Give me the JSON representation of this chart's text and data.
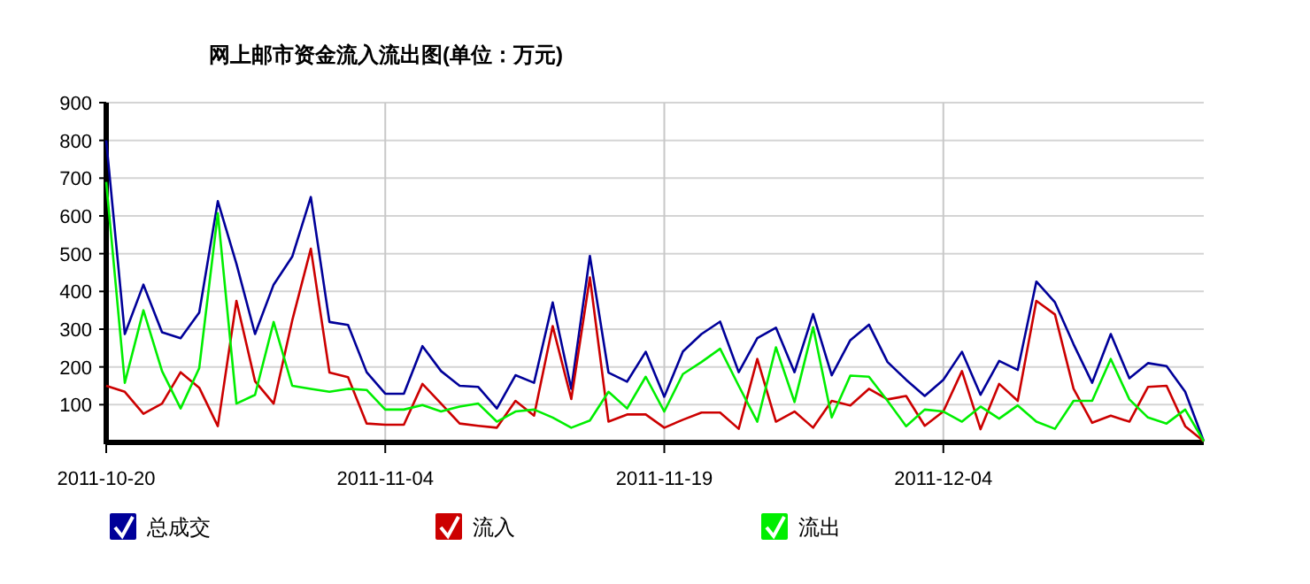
{
  "chart_data": {
    "type": "line",
    "title": "网上邮市资金流入流出图(单位：万元)",
    "x": [
      "2011-10-20",
      "2011-10-21",
      "2011-10-22",
      "2011-10-23",
      "2011-10-24",
      "2011-10-25",
      "2011-10-26",
      "2011-10-27",
      "2011-10-28",
      "2011-10-29",
      "2011-10-30",
      "2011-10-31",
      "2011-11-01",
      "2011-11-02",
      "2011-11-03",
      "2011-11-04",
      "2011-11-05",
      "2011-11-06",
      "2011-11-07",
      "2011-11-08",
      "2011-11-09",
      "2011-11-10",
      "2011-11-11",
      "2011-11-12",
      "2011-11-13",
      "2011-11-14",
      "2011-11-15",
      "2011-11-16",
      "2011-11-17",
      "2011-11-18",
      "2011-11-19",
      "2011-11-20",
      "2011-11-21",
      "2011-11-22",
      "2011-11-23",
      "2011-11-24",
      "2011-11-25",
      "2011-11-26",
      "2011-11-27",
      "2011-11-28",
      "2011-11-29",
      "2011-11-30",
      "2011-12-01",
      "2011-12-02",
      "2011-12-03",
      "2011-12-04",
      "2011-12-05",
      "2011-12-06",
      "2011-12-07",
      "2011-12-08",
      "2011-12-09",
      "2011-12-10",
      "2011-12-11",
      "2011-12-12",
      "2011-12-13",
      "2011-12-14",
      "2011-12-15",
      "2011-12-16",
      "2011-12-17",
      "2011-12-18"
    ],
    "series": [
      {
        "name": "总成交",
        "color": "#000099",
        "values": [
          800,
          287,
          418,
          292,
          276,
          344,
          639,
          473,
          287,
          418,
          492,
          650,
          319,
          311,
          186,
          129,
          129,
          255,
          189,
          150,
          147,
          90,
          178,
          158,
          371,
          142,
          494,
          185,
          161,
          240,
          121,
          241,
          287,
          320,
          186,
          276,
          304,
          186,
          340,
          178,
          271,
          312,
          213,
          166,
          123,
          166,
          240,
          126,
          216,
          192,
          426,
          371,
          260,
          158,
          287,
          170,
          210,
          202,
          134,
          3
        ]
      },
      {
        "name": "流入",
        "color": "#cc0000",
        "values": [
          150,
          134,
          76,
          103,
          186,
          145,
          43,
          375,
          162,
          103,
          323,
          513,
          185,
          173,
          50,
          47,
          47,
          155,
          103,
          50,
          44,
          39,
          110,
          71,
          308,
          115,
          437,
          55,
          74,
          74,
          39,
          60,
          79,
          79,
          36,
          221,
          55,
          82,
          39,
          110,
          98,
          142,
          114,
          123,
          44,
          82,
          189,
          35,
          155,
          110,
          375,
          339,
          142,
          52,
          71,
          55,
          147,
          150,
          43,
          3
        ]
      },
      {
        "name": "流出",
        "color": "#00ee00",
        "values": [
          690,
          158,
          350,
          189,
          90,
          197,
          607,
          103,
          126,
          319,
          150,
          142,
          134,
          142,
          139,
          87,
          87,
          99,
          82,
          95,
          103,
          55,
          82,
          87,
          66,
          39,
          58,
          134,
          90,
          174,
          82,
          181,
          213,
          248,
          150,
          55,
          252,
          107,
          305,
          66,
          177,
          174,
          110,
          43,
          87,
          82,
          55,
          95,
          63,
          98,
          55,
          36,
          110,
          110,
          221,
          114,
          66,
          50,
          87,
          3
        ]
      }
    ],
    "xlim": [
      "2011-10-20",
      "2011-12-18"
    ],
    "xticks": [
      {
        "value": "2011-10-20",
        "label": "2011-10-20"
      },
      {
        "value": "2011-11-04",
        "label": "2011-11-04"
      },
      {
        "value": "2011-11-19",
        "label": "2011-11-19"
      },
      {
        "value": "2011-12-04",
        "label": "2011-12-04"
      }
    ],
    "ylim": [
      0,
      900
    ],
    "yticks": [
      100,
      200,
      300,
      400,
      500,
      600,
      700,
      800,
      900
    ],
    "grid": true,
    "legend": "bottom"
  }
}
